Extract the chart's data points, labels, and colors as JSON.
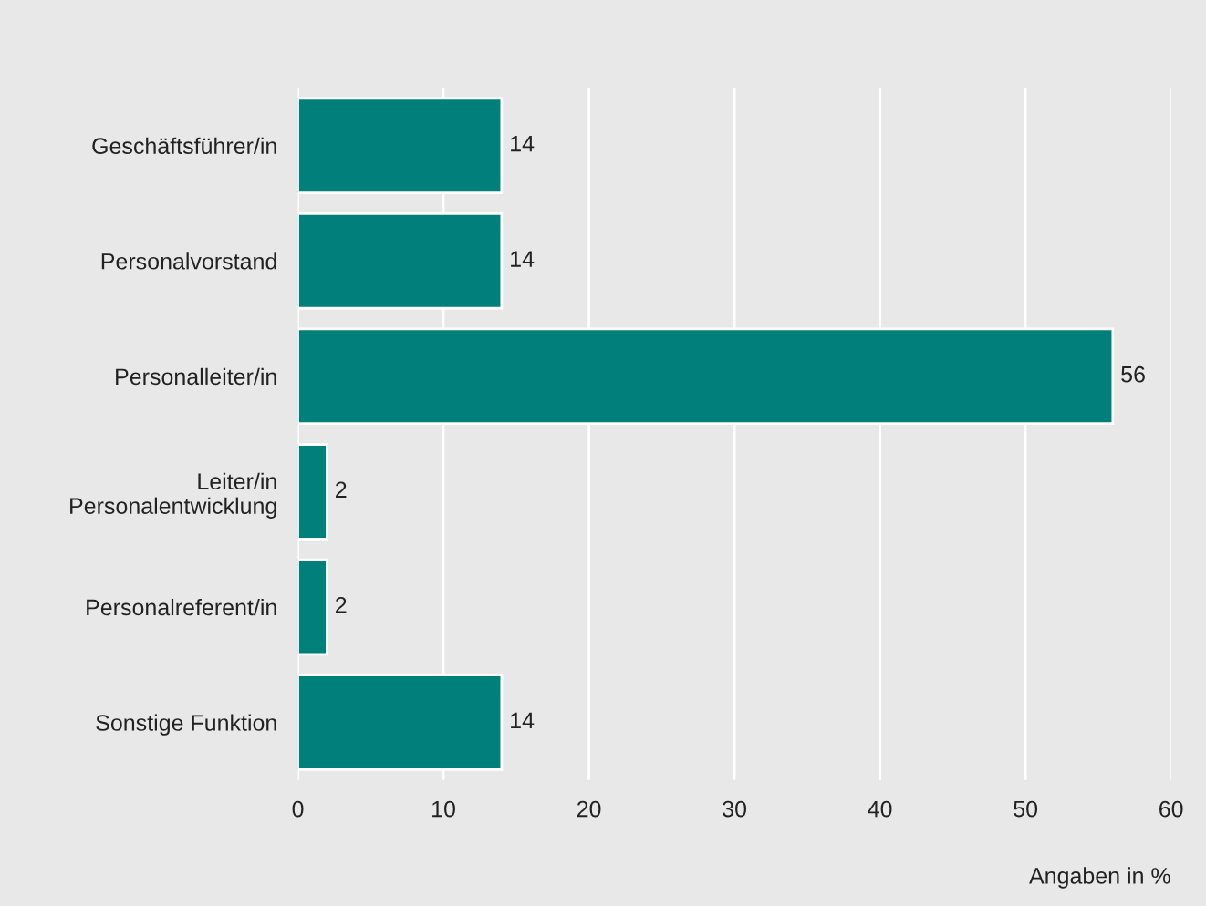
{
  "chart_data": {
    "type": "bar",
    "orientation": "horizontal",
    "categories": [
      "Geschäftsführer/in",
      "Personalvorstand",
      "Personalleiter/in",
      "Leiter/in\nPersonalentwicklung",
      "Personalreferent/in",
      "Sonstige Funktion"
    ],
    "values": [
      14,
      14,
      56,
      2,
      2,
      14
    ],
    "color": "#007f7b",
    "xlim": [
      0,
      60
    ],
    "xticks": [
      0,
      10,
      20,
      30,
      40,
      50,
      60
    ],
    "grid": "x",
    "data_labels": true,
    "xlabel": "Angaben in %"
  }
}
